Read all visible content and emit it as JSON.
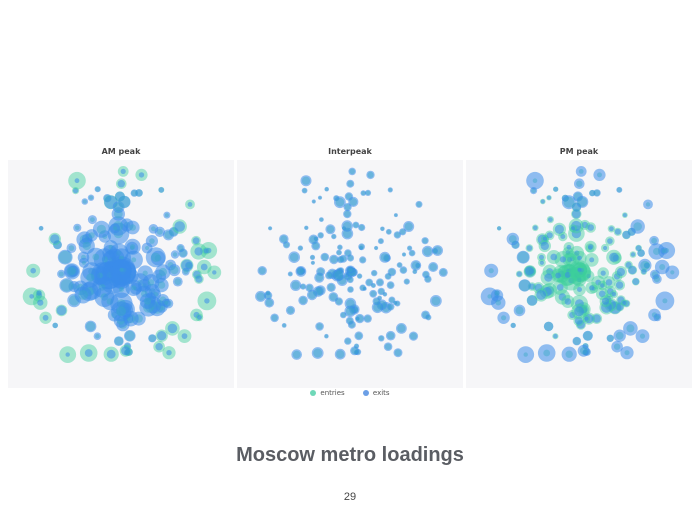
{
  "slide": {
    "title": "Moscow metro loadings",
    "page_number": "29"
  },
  "legend": {
    "items": [
      {
        "label": "entries",
        "color": "#6fd8b8"
      },
      {
        "label": "exits",
        "color": "#6b9fe6"
      }
    ]
  },
  "colors": {
    "entries": "#3ccf9b",
    "exits": "#3b8cea",
    "map_bg": "#f6f6f8",
    "label": "#555555"
  },
  "chart_data": [
    {
      "type": "scatter",
      "title": "AM peak",
      "description": "Bubble map of Moscow metro stations; bubble size = passenger volume; entries dominate outer stations, exits dominate center",
      "series": [
        {
          "name": "entries",
          "relative_intensity": "high at periphery"
        },
        {
          "name": "exits",
          "relative_intensity": "very high in center"
        }
      ],
      "legend_position": "bottom"
    },
    {
      "type": "scatter",
      "title": "Interpeak",
      "description": "Bubble map; smaller balanced bubbles, mostly exits color",
      "series": [
        {
          "name": "entries",
          "relative_intensity": "low"
        },
        {
          "name": "exits",
          "relative_intensity": "low-moderate"
        }
      ]
    },
    {
      "type": "scatter",
      "title": "PM peak",
      "description": "Bubble map; entries concentrated in center, exits at periphery",
      "series": [
        {
          "name": "entries",
          "relative_intensity": "high in center"
        },
        {
          "name": "exits",
          "relative_intensity": "high at periphery"
        }
      ]
    }
  ],
  "panels": [
    {
      "title": "AM peak",
      "mode": "am"
    },
    {
      "title": "Interpeak",
      "mode": "inter"
    },
    {
      "title": "PM peak",
      "mode": "pm"
    }
  ]
}
